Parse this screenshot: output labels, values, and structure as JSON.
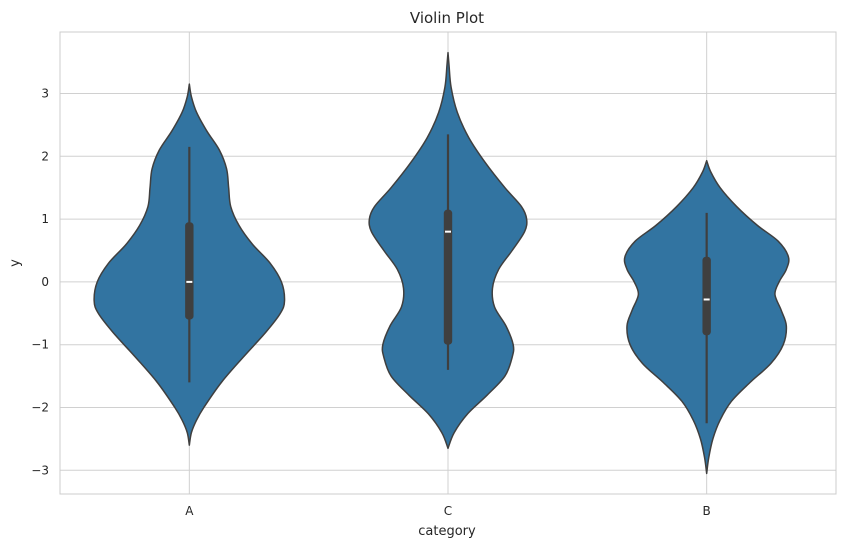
{
  "chart_data": {
    "type": "violin",
    "title": "Violin Plot",
    "xlabel": "category",
    "ylabel": "y",
    "categories": [
      "A",
      "C",
      "B"
    ],
    "ylim": [
      -3.4,
      3.95
    ],
    "yticks": [
      -3,
      -2,
      -1,
      0,
      1,
      2,
      3
    ],
    "ytick_labels": [
      "−3",
      "−2",
      "−1",
      "0",
      "1",
      "2",
      "3"
    ],
    "grid": true,
    "colors": {
      "fill": "#3274a1",
      "edge": "#3f3f3f",
      "box": "#3f3f3f",
      "median": "#ffffff",
      "grid": "#d0d0d0"
    },
    "violins": [
      {
        "category": "A",
        "min": -2.6,
        "max": 3.15,
        "whisker_low": -1.6,
        "whisker_high": 2.15,
        "q1": -0.6,
        "median": 0.0,
        "q3": 0.95,
        "density_y": [
          -2.6,
          -2.4,
          -2.2,
          -2.0,
          -1.6,
          -1.2,
          -0.8,
          -0.5,
          -0.3,
          0.0,
          0.3,
          0.6,
          0.9,
          1.2,
          1.5,
          1.8,
          2.1,
          2.4,
          2.7,
          2.95,
          3.15
        ],
        "density_w": [
          0.0,
          0.02,
          0.07,
          0.14,
          0.31,
          0.52,
          0.74,
          0.88,
          0.92,
          0.89,
          0.78,
          0.61,
          0.48,
          0.4,
          0.38,
          0.36,
          0.29,
          0.17,
          0.07,
          0.02,
          0.0
        ]
      },
      {
        "category": "C",
        "min": -2.65,
        "max": 3.65,
        "whisker_low": -1.4,
        "whisker_high": 2.35,
        "q1": -1.0,
        "median": 0.8,
        "q3": 1.15,
        "density_y": [
          -2.65,
          -2.4,
          -2.1,
          -1.8,
          -1.5,
          -1.2,
          -1.0,
          -0.7,
          -0.4,
          -0.1,
          0.2,
          0.5,
          0.8,
          1.0,
          1.2,
          1.5,
          1.9,
          2.3,
          2.7,
          3.1,
          3.45,
          3.65
        ],
        "density_w": [
          0.0,
          0.06,
          0.19,
          0.38,
          0.55,
          0.62,
          0.63,
          0.56,
          0.45,
          0.43,
          0.49,
          0.62,
          0.74,
          0.76,
          0.71,
          0.55,
          0.36,
          0.2,
          0.09,
          0.03,
          0.01,
          0.0
        ]
      },
      {
        "category": "B",
        "min": -3.05,
        "max": 1.93,
        "whisker_low": -2.25,
        "whisker_high": 1.1,
        "q1": -0.85,
        "median": -0.28,
        "q3": 0.4,
        "density_y": [
          -3.05,
          -2.8,
          -2.5,
          -2.2,
          -1.9,
          -1.6,
          -1.3,
          -1.0,
          -0.7,
          -0.45,
          -0.2,
          0.0,
          0.2,
          0.4,
          0.65,
          0.9,
          1.2,
          1.5,
          1.75,
          1.93
        ],
        "density_w": [
          0.0,
          0.02,
          0.06,
          0.13,
          0.24,
          0.42,
          0.62,
          0.74,
          0.77,
          0.72,
          0.66,
          0.7,
          0.77,
          0.79,
          0.69,
          0.49,
          0.29,
          0.13,
          0.04,
          0.0
        ]
      }
    ]
  }
}
